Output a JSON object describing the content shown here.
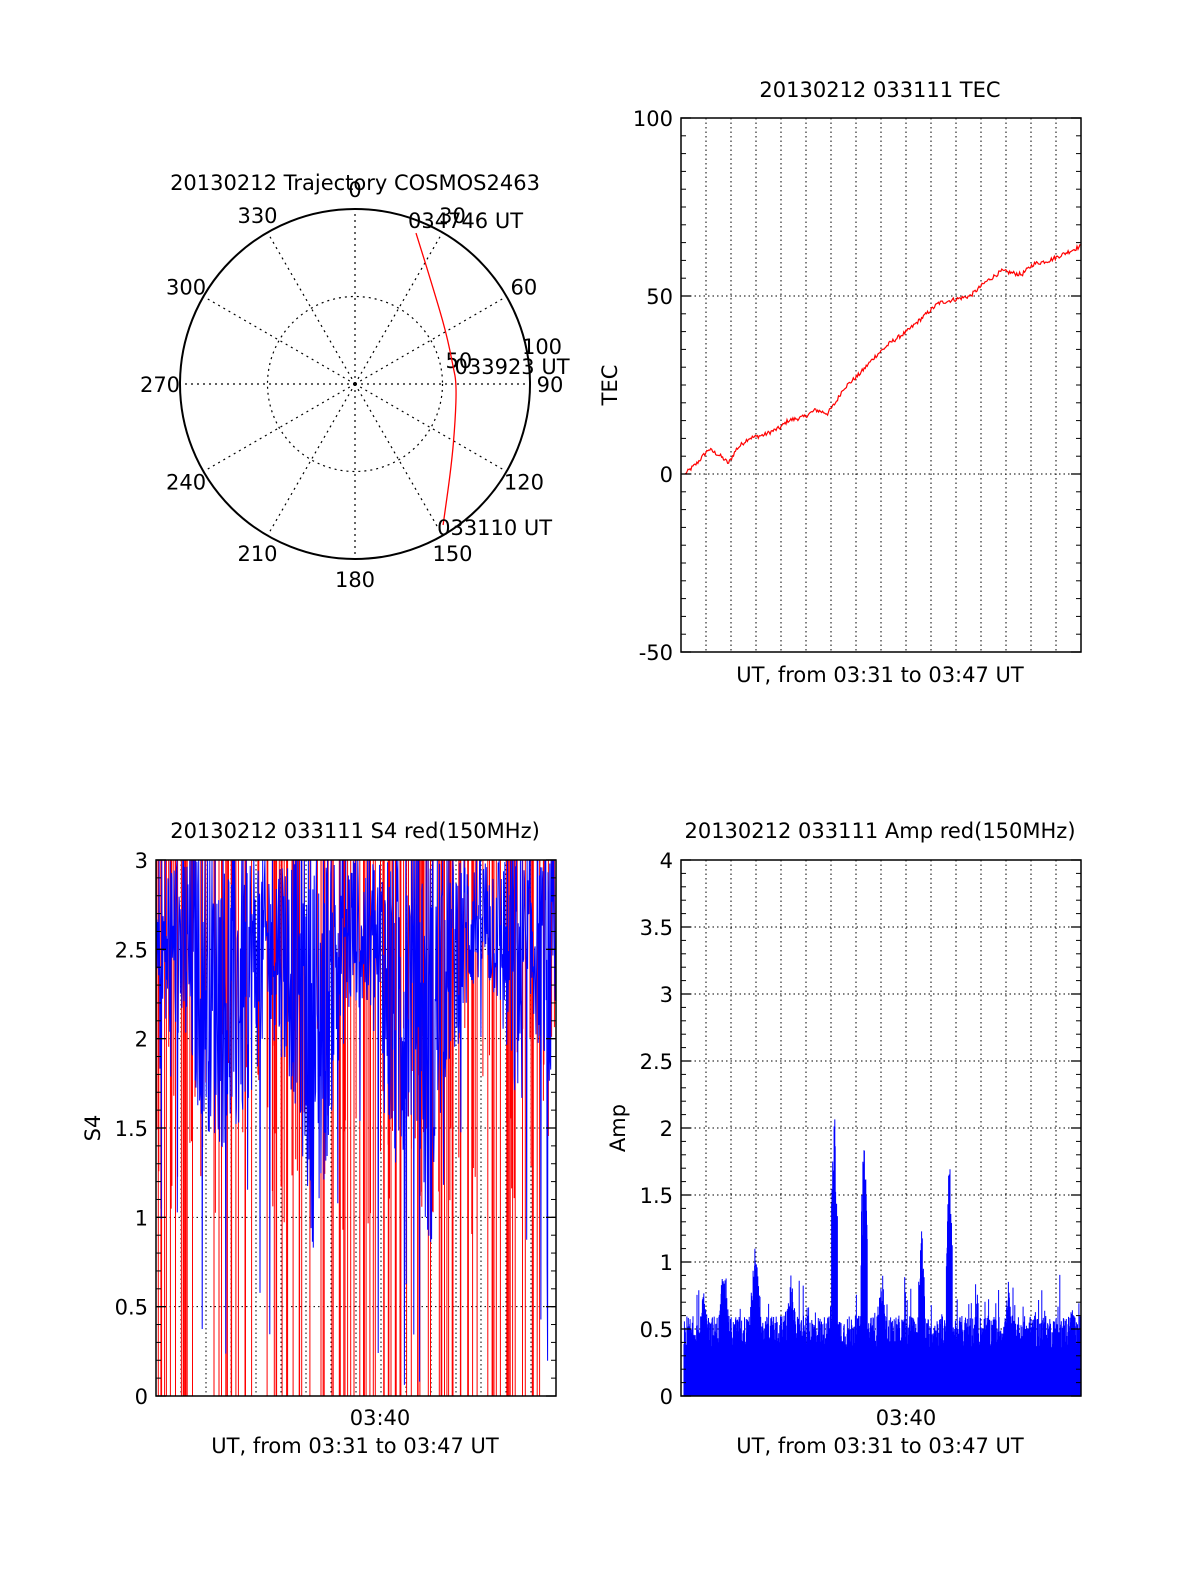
{
  "colors": {
    "red": "#ff0000",
    "blue": "#0000ff",
    "axis": "#000000",
    "grid": "#000000",
    "background": "#ffffff"
  },
  "chart_data": [
    {
      "type": "polar",
      "title": "20130212 Trajectory COSMOS2463",
      "angle_labels": [
        "0",
        "30",
        "60",
        "90",
        "120",
        "150",
        "180",
        "210",
        "240",
        "270",
        "300",
        "330"
      ],
      "radial_labels": [
        "50",
        "100"
      ],
      "direction": "clockwise-from-north",
      "grid": true,
      "trajectory": {
        "color": "#ff0000",
        "points": [
          {
            "azimuth": 22,
            "zenith": 93,
            "label": "034746 UT"
          },
          {
            "azimuth": 40,
            "zenith": 70
          },
          {
            "azimuth": 60,
            "zenith": 60
          },
          {
            "azimuth": 80,
            "zenith": 57
          },
          {
            "azimuth": 90,
            "zenith": 58,
            "label": "033923 UT"
          },
          {
            "azimuth": 110,
            "zenith": 61
          },
          {
            "azimuth": 130,
            "zenith": 72
          },
          {
            "azimuth": 148,
            "zenith": 95,
            "label": "033110 UT"
          }
        ]
      }
    },
    {
      "type": "line",
      "title": "20130212 033111 TEC",
      "xlabel": "UT, from 03:31 to 03:47 UT",
      "ylabel": "TEC",
      "ylim": [
        -50,
        100
      ],
      "yticks": [
        "100",
        "50",
        "0",
        "-50"
      ],
      "grid": true,
      "series": [
        {
          "color": "#ff0000",
          "points": [
            [
              0,
              0
            ],
            [
              0.03,
              3
            ],
            [
              0.06,
              7
            ],
            [
              0.09,
              5
            ],
            [
              0.11,
              3
            ],
            [
              0.13,
              7
            ],
            [
              0.16,
              10
            ],
            [
              0.2,
              11
            ],
            [
              0.24,
              13
            ],
            [
              0.26,
              15
            ],
            [
              0.3,
              16
            ],
            [
              0.33,
              18
            ],
            [
              0.36,
              17
            ],
            [
              0.38,
              20
            ],
            [
              0.4,
              24
            ],
            [
              0.44,
              28
            ],
            [
              0.48,
              33
            ],
            [
              0.52,
              37
            ],
            [
              0.56,
              40
            ],
            [
              0.6,
              44
            ],
            [
              0.64,
              48
            ],
            [
              0.68,
              49
            ],
            [
              0.72,
              50
            ],
            [
              0.76,
              54
            ],
            [
              0.8,
              57
            ],
            [
              0.85,
              56
            ],
            [
              0.88,
              59
            ],
            [
              0.92,
              60
            ],
            [
              0.96,
              62
            ],
            [
              1.0,
              64
            ]
          ]
        }
      ]
    },
    {
      "type": "line",
      "title": "20130212 033111 S4 red(150MHz)",
      "xlabel": "UT, from 03:31 to 03:47 UT",
      "ylabel": "S4",
      "ylim": [
        0,
        3
      ],
      "yticks": [
        "3",
        "2.5",
        "2",
        "1.5",
        "1",
        "0.5",
        "0"
      ],
      "xticks": [
        "03:40"
      ],
      "grid": true,
      "series": [
        {
          "name": "red",
          "color": "#ff0000",
          "description": "vertical spikes reaching 0..3"
        },
        {
          "name": "blue",
          "color": "#0000ff",
          "envelope": [
            [
              0,
              1.7
            ],
            [
              0.05,
              2.0
            ],
            [
              0.1,
              1.6
            ],
            [
              0.15,
              1.4
            ],
            [
              0.2,
              1.3
            ],
            [
              0.25,
              1.8
            ],
            [
              0.3,
              2.0
            ],
            [
              0.35,
              1.6
            ],
            [
              0.4,
              0.7
            ],
            [
              0.45,
              1.8
            ],
            [
              0.5,
              2.2
            ],
            [
              0.55,
              1.9
            ],
            [
              0.6,
              1.1
            ],
            [
              0.65,
              1.6
            ],
            [
              0.68,
              0.6
            ],
            [
              0.72,
              1.7
            ],
            [
              0.8,
              2.3
            ],
            [
              0.85,
              2.2
            ],
            [
              0.9,
              1.5
            ],
            [
              0.95,
              2.0
            ],
            [
              1.0,
              1.4
            ]
          ]
        }
      ]
    },
    {
      "type": "bar",
      "title": "20130212 033111 Amp red(150MHz)",
      "xlabel": "UT, from 03:31 to 03:47 UT",
      "ylabel": "Amp",
      "ylim": [
        0,
        4
      ],
      "yticks": [
        "4",
        "3.5",
        "3",
        "2.5",
        "2",
        "1.5",
        "1",
        "0.5",
        "0"
      ],
      "xticks": [
        "03:40"
      ],
      "grid": true,
      "series": [
        {
          "color": "#0000ff",
          "baseline": 0.35,
          "peaks": [
            [
              0.38,
              2.2
            ],
            [
              0.455,
              2.05
            ],
            [
              0.6,
              1.3
            ],
            [
              0.67,
              1.85
            ],
            [
              0.18,
              1.13
            ],
            [
              0.1,
              1.0
            ],
            [
              0.05,
              0.8
            ],
            [
              0.27,
              0.9
            ],
            [
              0.5,
              0.95
            ],
            [
              0.82,
              0.8
            ],
            [
              0.98,
              0.7
            ]
          ]
        }
      ]
    }
  ]
}
